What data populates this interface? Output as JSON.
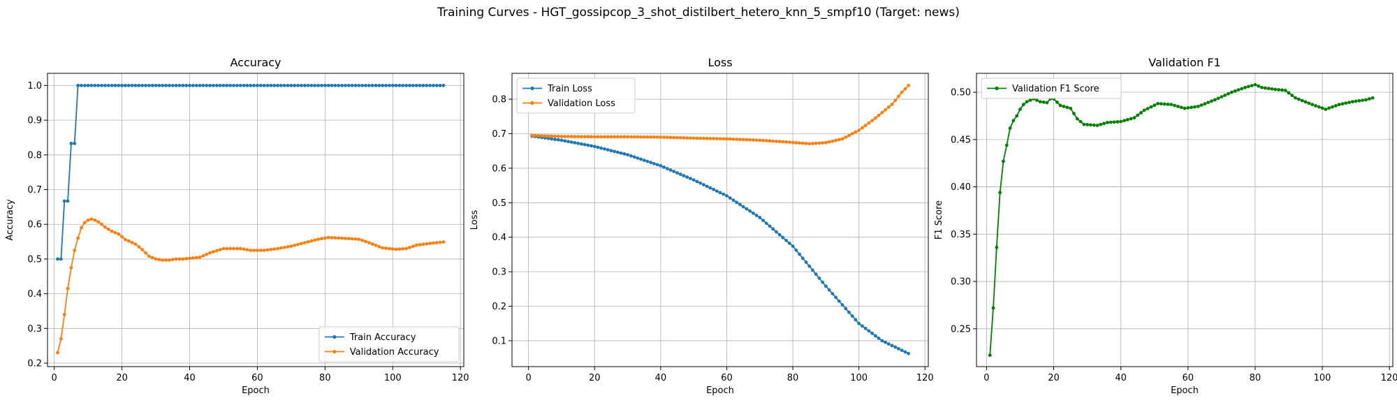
{
  "suptitle": "Training Curves - HGT_gossipcop_3_shot_distilbert_hetero_knn_5_smpf10 (Target: news)",
  "colors": {
    "blue": "#1f77b4",
    "orange": "#ff7f0e",
    "green": "#008000"
  },
  "chart_data": [
    {
      "type": "line",
      "title": "Accuracy",
      "xlabel": "Epoch",
      "ylabel": "Accuracy",
      "xlim": [
        -2,
        121
      ],
      "ylim": [
        0.19,
        1.035
      ],
      "xticks": [
        0,
        20,
        40,
        60,
        80,
        100,
        120
      ],
      "yticks": [
        0.2,
        0.3,
        0.4,
        0.5,
        0.6,
        0.7,
        0.8,
        0.9,
        1.0
      ],
      "ytick_labels": [
        "0.2",
        "0.3",
        "0.4",
        "0.5",
        "0.6",
        "0.7",
        "0.8",
        "0.9",
        "1.0"
      ],
      "grid": true,
      "legend_position": "lower-right",
      "series": [
        {
          "name": "Train Accuracy",
          "color": "#1f77b4",
          "x_range": [
            1,
            115
          ],
          "keypoints": [
            [
              1,
              0.5
            ],
            [
              2,
              0.5
            ],
            [
              3,
              0.667
            ],
            [
              4,
              0.667
            ],
            [
              5,
              0.833
            ],
            [
              6,
              0.833
            ],
            [
              7,
              1.0
            ],
            [
              115,
              1.0
            ]
          ]
        },
        {
          "name": "Validation Accuracy",
          "color": "#ff7f0e",
          "x_range": [
            1,
            115
          ],
          "keypoints": [
            [
              1,
              0.23
            ],
            [
              2,
              0.27
            ],
            [
              3,
              0.34
            ],
            [
              4,
              0.415
            ],
            [
              5,
              0.475
            ],
            [
              6,
              0.525
            ],
            [
              7,
              0.56
            ],
            [
              8,
              0.59
            ],
            [
              9,
              0.605
            ],
            [
              10,
              0.612
            ],
            [
              11,
              0.615
            ],
            [
              12,
              0.612
            ],
            [
              13,
              0.607
            ],
            [
              14,
              0.6
            ],
            [
              15,
              0.592
            ],
            [
              17,
              0.58
            ],
            [
              19,
              0.572
            ],
            [
              21,
              0.556
            ],
            [
              24,
              0.543
            ],
            [
              26,
              0.527
            ],
            [
              28,
              0.508
            ],
            [
              30,
              0.5
            ],
            [
              32,
              0.497
            ],
            [
              34,
              0.497
            ],
            [
              36,
              0.5
            ],
            [
              38,
              0.5
            ],
            [
              40,
              0.502
            ],
            [
              43,
              0.505
            ],
            [
              46,
              0.518
            ],
            [
              50,
              0.53
            ],
            [
              55,
              0.53
            ],
            [
              58,
              0.525
            ],
            [
              62,
              0.525
            ],
            [
              66,
              0.53
            ],
            [
              70,
              0.537
            ],
            [
              74,
              0.547
            ],
            [
              78,
              0.557
            ],
            [
              81,
              0.562
            ],
            [
              85,
              0.56
            ],
            [
              90,
              0.557
            ],
            [
              93,
              0.547
            ],
            [
              97,
              0.532
            ],
            [
              101,
              0.528
            ],
            [
              104,
              0.53
            ],
            [
              107,
              0.54
            ],
            [
              111,
              0.545
            ],
            [
              115,
              0.549
            ]
          ]
        }
      ]
    },
    {
      "type": "line",
      "title": "Loss",
      "xlabel": "Epoch",
      "ylabel": "Loss",
      "xlim": [
        -5,
        121
      ],
      "ylim": [
        0.025,
        0.875
      ],
      "xticks": [
        0,
        20,
        40,
        60,
        80,
        100,
        120
      ],
      "yticks": [
        0.1,
        0.2,
        0.3,
        0.4,
        0.5,
        0.6,
        0.7,
        0.8
      ],
      "ytick_labels": [
        "0.1",
        "0.2",
        "0.3",
        "0.4",
        "0.5",
        "0.6",
        "0.7",
        "0.8"
      ],
      "grid": true,
      "legend_position": "upper-left",
      "series": [
        {
          "name": "Train Loss",
          "color": "#1f77b4",
          "x_range": [
            1,
            115
          ],
          "keypoints": [
            [
              1,
              0.693
            ],
            [
              10,
              0.681
            ],
            [
              20,
              0.663
            ],
            [
              30,
              0.639
            ],
            [
              40,
              0.607
            ],
            [
              50,
              0.566
            ],
            [
              60,
              0.52
            ],
            [
              70,
              0.457
            ],
            [
              80,
              0.374
            ],
            [
              90,
              0.258
            ],
            [
              100,
              0.15
            ],
            [
              107,
              0.1
            ],
            [
              115,
              0.063
            ]
          ]
        },
        {
          "name": "Validation Loss",
          "color": "#ff7f0e",
          "x_range": [
            1,
            115
          ],
          "keypoints": [
            [
              1,
              0.695
            ],
            [
              10,
              0.692
            ],
            [
              20,
              0.691
            ],
            [
              30,
              0.691
            ],
            [
              40,
              0.69
            ],
            [
              50,
              0.687
            ],
            [
              60,
              0.685
            ],
            [
              70,
              0.681
            ],
            [
              78,
              0.676
            ],
            [
              85,
              0.671
            ],
            [
              90,
              0.674
            ],
            [
              95,
              0.685
            ],
            [
              100,
              0.71
            ],
            [
              105,
              0.745
            ],
            [
              110,
              0.785
            ],
            [
              113,
              0.82
            ],
            [
              115,
              0.84
            ]
          ]
        }
      ]
    },
    {
      "type": "line",
      "title": "Validation F1",
      "xlabel": "Epoch",
      "ylabel": "F1 Score",
      "xlim": [
        -3,
        121
      ],
      "ylim": [
        0.21,
        0.52
      ],
      "xticks": [
        0,
        20,
        40,
        60,
        80,
        100,
        120
      ],
      "yticks": [
        0.25,
        0.3,
        0.35,
        0.4,
        0.45,
        0.5
      ],
      "ytick_labels": [
        "0.25",
        "0.30",
        "0.35",
        "0.40",
        "0.45",
        "0.50"
      ],
      "grid": true,
      "legend_position": "upper-left",
      "series": [
        {
          "name": "Validation F1 Score",
          "color": "#008000",
          "x_range": [
            1,
            115
          ],
          "keypoints": [
            [
              1,
              0.222
            ],
            [
              2,
              0.272
            ],
            [
              3,
              0.336
            ],
            [
              4,
              0.394
            ],
            [
              5,
              0.427
            ],
            [
              6,
              0.444
            ],
            [
              7,
              0.462
            ],
            [
              8,
              0.47
            ],
            [
              9,
              0.475
            ],
            [
              10,
              0.482
            ],
            [
              11,
              0.487
            ],
            [
              12,
              0.49
            ],
            [
              14,
              0.493
            ],
            [
              16,
              0.49
            ],
            [
              18,
              0.489
            ],
            [
              19,
              0.493
            ],
            [
              20,
              0.493
            ],
            [
              22,
              0.486
            ],
            [
              25,
              0.483
            ],
            [
              27,
              0.472
            ],
            [
              29,
              0.466
            ],
            [
              33,
              0.465
            ],
            [
              36,
              0.468
            ],
            [
              40,
              0.469
            ],
            [
              44,
              0.473
            ],
            [
              47,
              0.481
            ],
            [
              51,
              0.488
            ],
            [
              55,
              0.487
            ],
            [
              59,
              0.483
            ],
            [
              63,
              0.485
            ],
            [
              68,
              0.492
            ],
            [
              73,
              0.5
            ],
            [
              77,
              0.505
            ],
            [
              80,
              0.508
            ],
            [
              82,
              0.505
            ],
            [
              86,
              0.503
            ],
            [
              89,
              0.502
            ],
            [
              92,
              0.494
            ],
            [
              97,
              0.487
            ],
            [
              101,
              0.482
            ],
            [
              105,
              0.487
            ],
            [
              109,
              0.49
            ],
            [
              113,
              0.492
            ],
            [
              115,
              0.494
            ]
          ]
        }
      ]
    }
  ]
}
